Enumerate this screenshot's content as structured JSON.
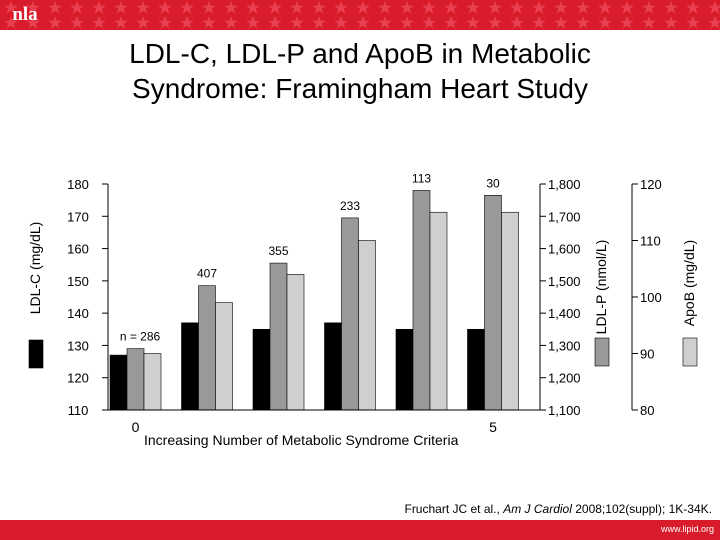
{
  "slide": {
    "logo_text": "nla",
    "title_line1": "LDL-C, LDL-P and ApoB in Metabolic",
    "title_line2": "Syndrome: Framingham Heart Study",
    "citation_authors": "Fruchart JC et al.,",
    "citation_journal": "Am J Cardiol",
    "citation_rest": "2008;102(suppl); 1K-34K.",
    "footer_url": "www.lipid.org",
    "colors": {
      "brand_red": "#d81c2b",
      "ldl_c": "#000000",
      "ldl_p": "#999999",
      "apob": "#cfcfcf"
    }
  },
  "chart_data": {
    "type": "bar",
    "xlabel": "Increasing Number of Metabolic Syndrome Criteria",
    "categories": [
      "0",
      "1",
      "2",
      "3",
      "4",
      "5"
    ],
    "x_tick_labels": [
      {
        "category_index": 0,
        "text": "0"
      },
      {
        "category_index": 5,
        "text": "5"
      }
    ],
    "n_labels": [
      "n = 286",
      "407",
      "355",
      "233",
      "113",
      "30"
    ],
    "axes": [
      {
        "label": "LDL-C (mg/dL)",
        "ylim": [
          110,
          180
        ],
        "ticks": [
          110,
          120,
          130,
          140,
          150,
          160,
          170,
          180
        ],
        "tick_labels": [
          "110",
          "120",
          "130",
          "140",
          "150",
          "160",
          "170",
          "180"
        ]
      },
      {
        "label": "LDL-P (nmol/L)",
        "ylim": [
          1100,
          1800
        ],
        "ticks": [
          1100,
          1200,
          1300,
          1400,
          1500,
          1600,
          1700,
          1800
        ],
        "tick_labels": [
          "1,100",
          "1,200",
          "1,300",
          "1,400",
          "1,500",
          "1,600",
          "1,700",
          "1,800"
        ]
      },
      {
        "label": "ApoB (mg/dL)",
        "ylim": [
          80,
          120
        ],
        "ticks": [
          80,
          90,
          100,
          110,
          120
        ],
        "tick_labels": [
          "80",
          "90",
          "100",
          "110",
          "120"
        ]
      }
    ],
    "series": [
      {
        "name": "LDL-C (mg/dL)",
        "axis": 0,
        "color": "#000000",
        "values": [
          127,
          137,
          135,
          137,
          135,
          135
        ]
      },
      {
        "name": "LDL-P (nmol/L)",
        "axis": 1,
        "color": "#999999",
        "values": [
          1290,
          1485,
          1555,
          1695,
          1780,
          1765
        ]
      },
      {
        "name": "ApoB (mg/dL)",
        "axis": 2,
        "color": "#cfcfcf",
        "values": [
          90,
          99,
          104,
          110,
          115,
          115
        ]
      }
    ],
    "grid": false,
    "legend": "swatches beside each y-axis label"
  }
}
